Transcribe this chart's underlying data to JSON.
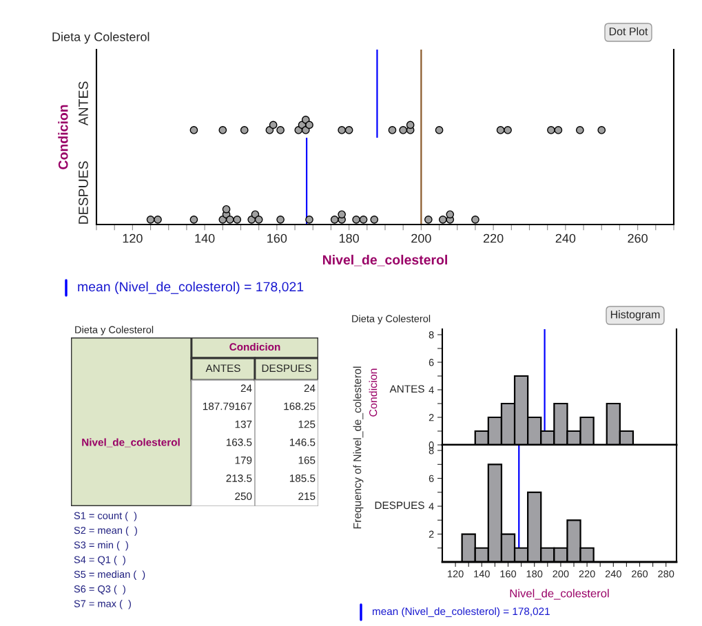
{
  "chart_data": [
    {
      "type": "scatter",
      "title": "Dieta y Colesterol",
      "xlabel": "Nivel_de_colesterol",
      "ylabel": "Condicion",
      "orientation": "horizontal",
      "marker": "circle",
      "categories": [
        "ANTES",
        "DESPUES"
      ],
      "series": [
        {
          "color": "#a0a0a0",
          "x": [
            "ANTES",
            "ANTES",
            "ANTES",
            "ANTES",
            "ANTES",
            "ANTES",
            "ANTES",
            "ANTES",
            "ANTES",
            "ANTES",
            "ANTES",
            "ANTES",
            "ANTES",
            "ANTES",
            "ANTES",
            "ANTES",
            "ANTES",
            "ANTES",
            "ANTES",
            "ANTES",
            "ANTES",
            "ANTES",
            "ANTES",
            "ANTES"
          ],
          "values": [
            137,
            145,
            151,
            158,
            159,
            161,
            166,
            167,
            168,
            168,
            169,
            178,
            180,
            192,
            195,
            197,
            197,
            205,
            222,
            224,
            236,
            238,
            244,
            250
          ]
        },
        {
          "color": "#a0a0a0",
          "x": [
            "DESPUES",
            "DESPUES",
            "DESPUES",
            "DESPUES",
            "DESPUES",
            "DESPUES",
            "DESPUES",
            "DESPUES",
            "DESPUES",
            "DESPUES",
            "DESPUES",
            "DESPUES",
            "DESPUES",
            "DESPUES",
            "DESPUES",
            "DESPUES",
            "DESPUES",
            "DESPUES",
            "DESPUES",
            "DESPUES",
            "DESPUES",
            "DESPUES",
            "DESPUES",
            "DESPUES"
          ],
          "values": [
            125,
            127,
            137,
            145,
            146,
            146,
            147,
            149,
            153,
            154,
            155,
            161,
            169,
            176,
            178,
            178,
            182,
            184,
            187,
            202,
            206,
            208,
            208,
            215
          ]
        }
      ],
      "xlim": [
        110,
        270
      ],
      "xticks": [
        {
          "value": 110,
          "label": null
        },
        {
          "value": 115,
          "label": null
        },
        120,
        {
          "value": 125,
          "label": null
        },
        {
          "value": 130,
          "label": null
        },
        {
          "value": 135,
          "label": null
        },
        140,
        {
          "value": 145,
          "label": null
        },
        {
          "value": 150,
          "label": null
        },
        {
          "value": 155,
          "label": null
        },
        160,
        {
          "value": 165,
          "label": null
        },
        {
          "value": 170,
          "label": null
        },
        {
          "value": 175,
          "label": null
        },
        180,
        {
          "value": 185,
          "label": null
        },
        {
          "value": 190,
          "label": null
        },
        {
          "value": 195,
          "label": null
        },
        200,
        {
          "value": 205,
          "label": null
        },
        {
          "value": 210,
          "label": null
        },
        {
          "value": 215,
          "label": null
        },
        220,
        {
          "value": 225,
          "label": null
        },
        {
          "value": 230,
          "label": null
        },
        {
          "value": 235,
          "label": null
        },
        240,
        {
          "value": 245,
          "label": null
        },
        {
          "value": 250,
          "label": null
        },
        {
          "value": 255,
          "label": null
        },
        260,
        {
          "value": 265,
          "label": null
        },
        {
          "value": 270,
          "label": null
        }
      ],
      "ref_lines": [
        {
          "axis": "x",
          "value": 187.79167,
          "color": "#0000ff"
        },
        {
          "axis": "x",
          "value": 168.25,
          "color": "#0000ff"
        },
        {
          "axis": "x",
          "value": 200,
          "color": "#8b5a2b"
        }
      ],
      "grid": false,
      "legend": false,
      "annotations": [
        "Dot Plot",
        "mean (Nivel_de_colesterol) = 178,021"
      ]
    },
    {
      "type": "other",
      "title": "Dieta y Colesterol",
      "xlabel": "Condicion",
      "ylabel": "Nivel_de_colesterol",
      "categories": [
        "ANTES",
        "DESPUES"
      ],
      "cell_labels": [
        [
          "24",
          "24"
        ],
        [
          "187.79167",
          "168.25"
        ],
        [
          "137",
          "125"
        ],
        [
          "163.5",
          "146.5"
        ],
        [
          "179",
          "165"
        ],
        [
          "213.5",
          "185.5"
        ],
        [
          "250",
          "215"
        ]
      ],
      "annotations": [
        "S1 = count (  )",
        "S2 = mean (  )",
        "S3 = min (  )",
        "S4 = Q1 (  )",
        "S5 = median (  )",
        "S6 = Q3 (  )",
        "S7 = max (  )"
      ]
    },
    {
      "type": "histogram",
      "title": "Dieta y Colesterol",
      "subtitle": "ANTES",
      "ylabel": "Frequency of Nivel_de_colesterol",
      "color": "#a0a0a4",
      "bins": [
        135,
        145,
        155,
        165,
        175,
        185,
        195,
        205,
        215,
        225,
        235,
        245,
        255
      ],
      "values": [
        1,
        2,
        3,
        5,
        2,
        1,
        3,
        1,
        2,
        0,
        3,
        1
      ],
      "xlim": [
        110,
        288
      ],
      "ylim": [
        0,
        8.4
      ],
      "yticks": [
        0,
        {
          "value": 1,
          "label": null
        },
        2,
        {
          "value": 3,
          "label": null
        },
        4,
        {
          "value": 5,
          "label": null
        },
        6,
        {
          "value": 7,
          "label": null
        },
        8
      ],
      "tick_labels": "y",
      "grid": false,
      "ref_lines": [
        {
          "axis": "x",
          "value": 187.79167,
          "color": "#0000ff"
        }
      ],
      "annotations": [
        "Condicion",
        "Histogram"
      ]
    },
    {
      "type": "histogram",
      "subtitle": "DESPUES",
      "xlabel": "Nivel_de_colesterol",
      "color": "#a0a0a4",
      "bins": [
        125,
        135,
        145,
        155,
        165,
        175,
        185,
        195,
        205,
        215,
        225
      ],
      "values": [
        2,
        1,
        7,
        2,
        1,
        5,
        1,
        1,
        3,
        1
      ],
      "xlim": [
        110,
        288
      ],
      "ylim": [
        0,
        8.4
      ],
      "yticks": [
        {
          "value": 1,
          "label": null
        },
        2,
        {
          "value": 3,
          "label": null
        },
        4,
        {
          "value": 5,
          "label": null
        },
        6,
        {
          "value": 7,
          "label": null
        },
        8
      ],
      "xticks": [
        120,
        {
          "value": 130,
          "label": null
        },
        140,
        {
          "value": 150,
          "label": null
        },
        160,
        {
          "value": 170,
          "label": null
        },
        180,
        {
          "value": 190,
          "label": null
        },
        200,
        {
          "value": 210,
          "label": null
        },
        220,
        {
          "value": 230,
          "label": null
        },
        240,
        {
          "value": 250,
          "label": null
        },
        260,
        {
          "value": 270,
          "label": null
        },
        280
      ],
      "grid": false,
      "ref_lines": [
        {
          "axis": "x",
          "value": 168.25,
          "color": "#0000ff"
        }
      ],
      "annotations": [
        "mean (Nivel_de_colesterol) = 178,021"
      ]
    }
  ]
}
